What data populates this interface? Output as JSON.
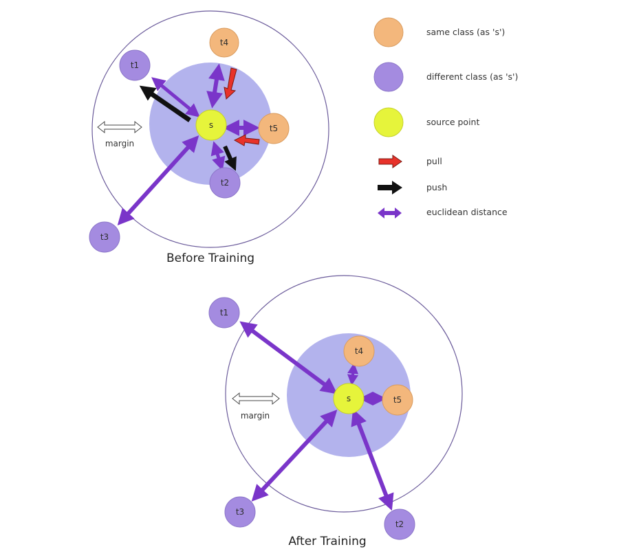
{
  "colors": {
    "same_class": "#f3b77c",
    "different_class": "#a48be0",
    "source": "#e6f43b",
    "pull": "#e8322a",
    "push": "#111111",
    "distance": "#7a35c9",
    "inner_region": "#a6a6ea",
    "outer_circle": "#6a5a9a"
  },
  "legend": {
    "same_class": "same class (as 's')",
    "different_class": "different class (as 's')",
    "source_point": "source point",
    "pull": "pull",
    "push": "push",
    "euclidean_distance": "euclidean distance"
  },
  "before": {
    "caption": "Before Training",
    "margin_label": "margin",
    "source_label": "s",
    "nodes": {
      "t1": "t1",
      "t2": "t2",
      "t3": "t3",
      "t4": "t4",
      "t5": "t5"
    }
  },
  "after": {
    "caption": "After Training",
    "margin_label": "margin",
    "source_label": "s",
    "nodes": {
      "t1": "t1",
      "t2": "t2",
      "t3": "t3",
      "t4": "t4",
      "t5": "t5"
    }
  }
}
